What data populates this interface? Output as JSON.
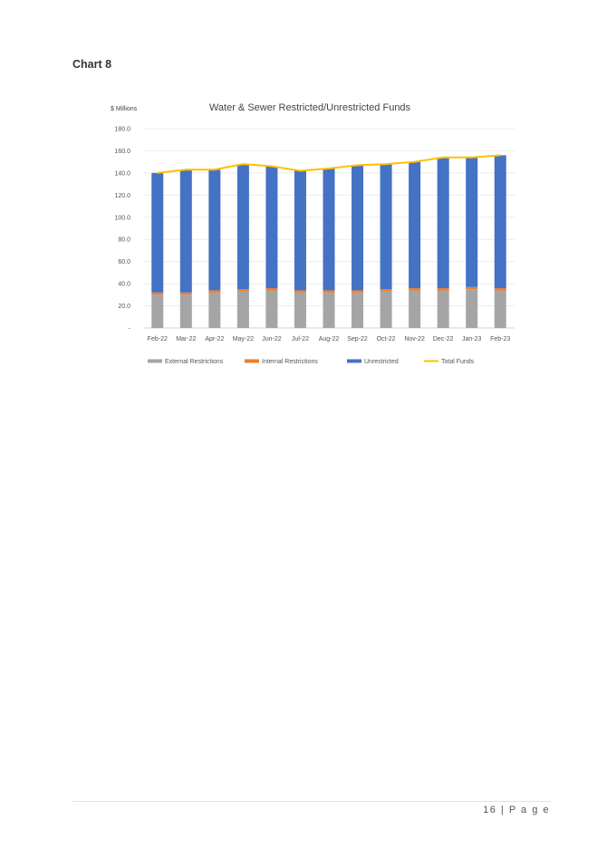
{
  "section": {
    "title": "Chart 8"
  },
  "footer": {
    "page_label": "16 | P a g e"
  },
  "chart_data": {
    "type": "bar",
    "stacked": true,
    "title": "Water & Sewer Restricted/Unrestricted Funds",
    "ylabel": "$ Millions",
    "xlabel": "",
    "ylim": [
      0,
      180
    ],
    "yticks": [
      "-",
      "20.0",
      "40.0",
      "60.0",
      "80.0",
      "100.0",
      "120.0",
      "140.0",
      "160.0",
      "180.0"
    ],
    "grid": true,
    "legend_position": "bottom",
    "categories": [
      "Feb-22",
      "Mar-22",
      "Apr-22",
      "May-22",
      "Jun-22",
      "Jul-22",
      "Aug-22",
      "Sep-22",
      "Oct-22",
      "Nov-22",
      "Dec-22",
      "Jan-23",
      "Feb-23"
    ],
    "series": [
      {
        "name": "External Restrictions",
        "kind": "bar",
        "color": "#a5a5a5",
        "values": [
          30,
          30,
          32,
          33,
          34,
          32,
          32,
          32,
          33,
          34,
          34,
          35,
          34
        ]
      },
      {
        "name": "Internal Restrictions",
        "kind": "bar",
        "color": "#ed7d31",
        "values": [
          2,
          2,
          2,
          2,
          2,
          2,
          2,
          2,
          2,
          2,
          2,
          2,
          2
        ]
      },
      {
        "name": "Unrestricted",
        "kind": "bar",
        "color": "#4472c4",
        "values": [
          108,
          111,
          109,
          113,
          110,
          108,
          110,
          113,
          113,
          114,
          118,
          117,
          120
        ]
      },
      {
        "name": "Total Funds",
        "kind": "line",
        "color": "#ffc000",
        "values": [
          140,
          143,
          143,
          148,
          146,
          142,
          144,
          147,
          148,
          150,
          154,
          154,
          156
        ]
      }
    ]
  }
}
